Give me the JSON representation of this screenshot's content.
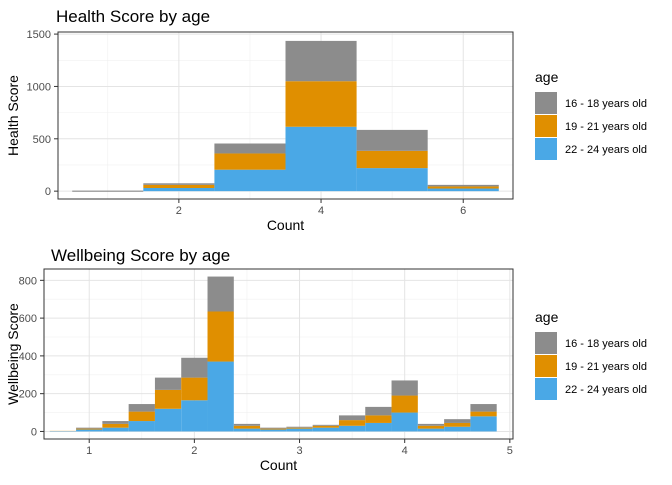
{
  "colors": {
    "16 - 18 years old": "#8c8c8c",
    "19 - 21 years old": "#e08f00",
    "22 - 24 years old": "#4aa8e6"
  },
  "chart_data": [
    {
      "type": "bar",
      "stacked": true,
      "title": "Health Score by age",
      "xlabel": "Count",
      "ylabel": "Health Score",
      "xlim": [
        0.3,
        6.7
      ],
      "ylim": [
        -75,
        1520
      ],
      "xticks": [
        2,
        4,
        6
      ],
      "yticks": [
        0,
        500,
        1000,
        1500
      ],
      "bin_width": 1,
      "grid": true,
      "legend_title": "age",
      "legend_position": "right",
      "x": [
        1,
        2,
        3,
        4,
        5,
        6
      ],
      "series": [
        {
          "name": "22 - 24 years old",
          "values": [
            0,
            30,
            205,
            615,
            220,
            25
          ]
        },
        {
          "name": "19 - 21 years old",
          "values": [
            0,
            30,
            155,
            435,
            165,
            20
          ]
        },
        {
          "name": "16 - 18 years old",
          "values": [
            0,
            15,
            95,
            385,
            200,
            15
          ]
        }
      ]
    },
    {
      "type": "bar",
      "stacked": true,
      "title": "Wellbeing Score by age",
      "xlabel": "Count",
      "ylabel": "Wellbeing Score",
      "xlim": [
        0.57,
        5.03
      ],
      "ylim": [
        -40,
        860
      ],
      "xticks": [
        1,
        2,
        3,
        4,
        5
      ],
      "yticks": [
        0,
        200,
        400,
        600,
        800
      ],
      "bin_width": 0.25,
      "grid": true,
      "legend_title": "age",
      "legend_position": "right",
      "x": [
        0.75,
        1.0,
        1.25,
        1.5,
        1.75,
        2.0,
        2.25,
        2.5,
        2.75,
        3.0,
        3.25,
        3.5,
        3.75,
        4.0,
        4.25,
        4.5,
        4.75
      ],
      "series": [
        {
          "name": "22 - 24 years old",
          "values": [
            2,
            10,
            20,
            55,
            120,
            165,
            370,
            15,
            10,
            15,
            20,
            30,
            45,
            100,
            15,
            25,
            80
          ]
        },
        {
          "name": "19 - 21 years old",
          "values": [
            1,
            5,
            20,
            50,
            100,
            120,
            265,
            15,
            5,
            5,
            10,
            30,
            40,
            90,
            15,
            20,
            25
          ]
        },
        {
          "name": "16 - 18 years old",
          "values": [
            0,
            5,
            15,
            40,
            65,
            105,
            185,
            10,
            5,
            5,
            5,
            25,
            45,
            80,
            10,
            20,
            40
          ]
        }
      ]
    }
  ]
}
